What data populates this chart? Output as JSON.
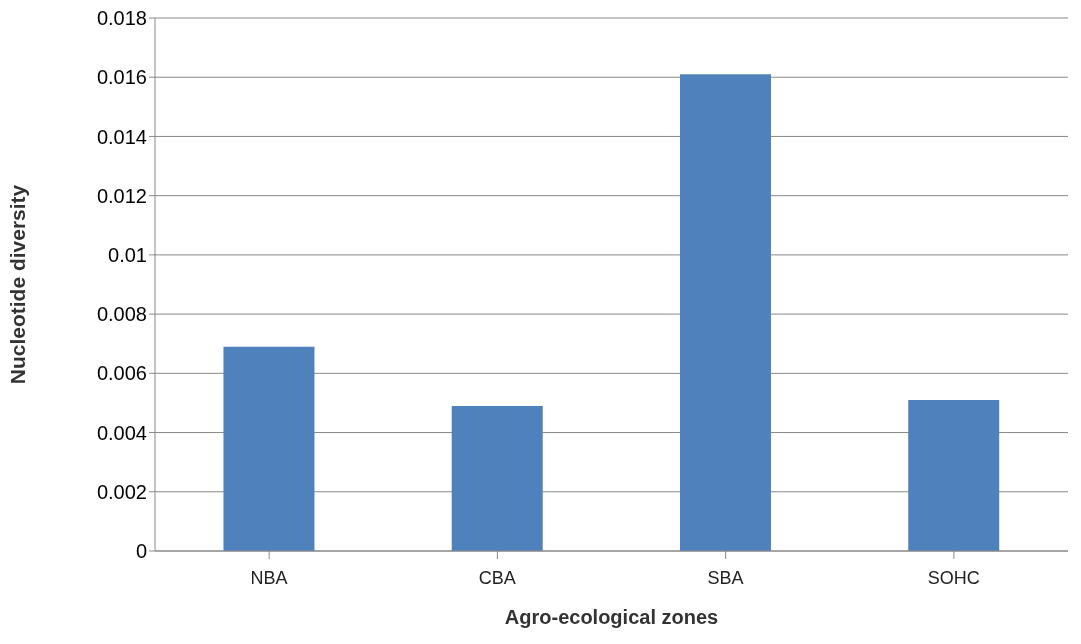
{
  "chart_data": {
    "type": "bar",
    "xlabel": "Agro-ecological zones",
    "ylabel": "Nucleotide diversity",
    "categories": [
      "NBA",
      "CBA",
      "SBA",
      "SOHC"
    ],
    "values": [
      0.0069,
      0.0049,
      0.0161,
      0.0051
    ],
    "color": "#4f81bd",
    "ylim": [
      0,
      0.018
    ],
    "yticks": [
      0,
      0.002,
      0.004,
      0.006,
      0.008,
      0.01,
      0.012,
      0.014,
      0.016,
      0.018
    ],
    "grid": "y",
    "legend": false
  }
}
